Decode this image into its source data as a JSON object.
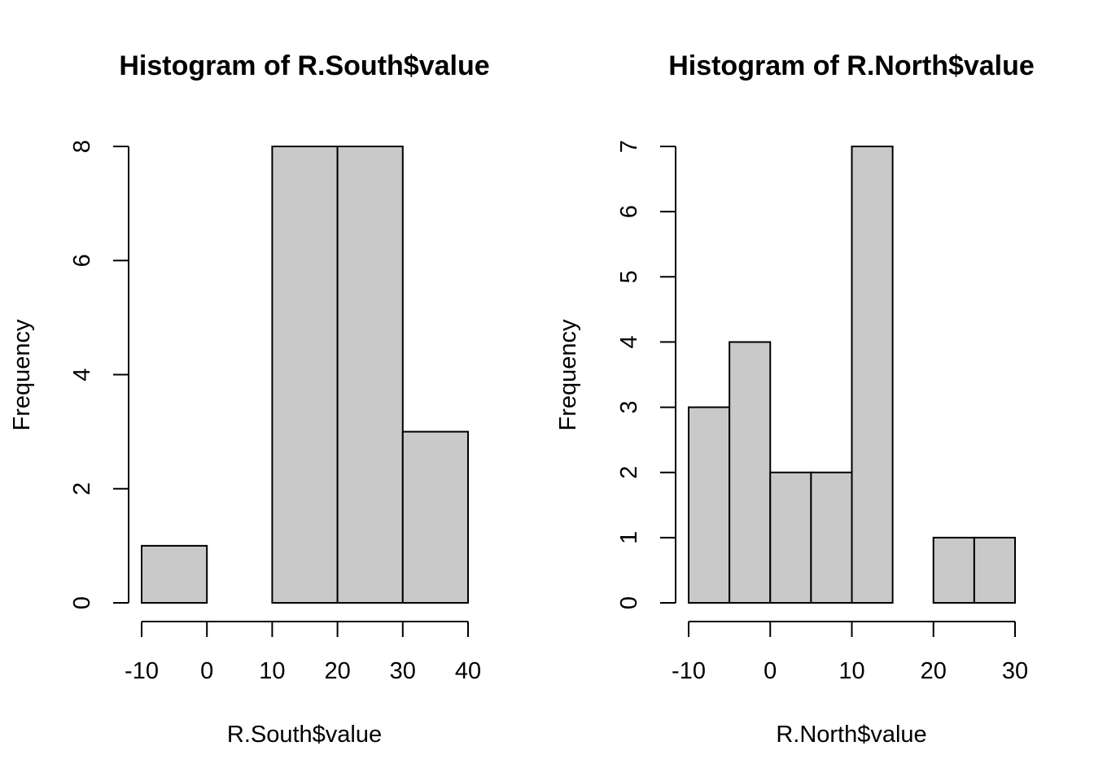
{
  "chart_data": [
    {
      "type": "bar",
      "title": "Histogram of R.South$value",
      "xlabel": "R.South$value",
      "ylabel": "Frequency",
      "bins": [
        {
          "start": -10,
          "end": 0,
          "count": 1
        },
        {
          "start": 0,
          "end": 10,
          "count": 0
        },
        {
          "start": 10,
          "end": 20,
          "count": 8
        },
        {
          "start": 20,
          "end": 30,
          "count": 8
        },
        {
          "start": 30,
          "end": 40,
          "count": 3
        }
      ],
      "x_ticks": [
        -10,
        0,
        10,
        20,
        30,
        40
      ],
      "y_ticks": [
        0,
        2,
        4,
        6,
        8
      ],
      "xlim": [
        -10,
        40
      ],
      "ylim": [
        0,
        8
      ],
      "grid": false,
      "bar_color": "#c9c9c9"
    },
    {
      "type": "bar",
      "title": "Histogram of R.North$value",
      "xlabel": "R.North$value",
      "ylabel": "Frequency",
      "bins": [
        {
          "start": -10,
          "end": -5,
          "count": 3
        },
        {
          "start": -5,
          "end": 0,
          "count": 4
        },
        {
          "start": 0,
          "end": 5,
          "count": 2
        },
        {
          "start": 5,
          "end": 10,
          "count": 2
        },
        {
          "start": 10,
          "end": 15,
          "count": 7
        },
        {
          "start": 15,
          "end": 20,
          "count": 0
        },
        {
          "start": 20,
          "end": 25,
          "count": 1
        },
        {
          "start": 25,
          "end": 30,
          "count": 1
        }
      ],
      "x_ticks": [
        -10,
        0,
        10,
        20,
        30
      ],
      "y_ticks": [
        0,
        1,
        2,
        3,
        4,
        5,
        6,
        7
      ],
      "xlim": [
        -10,
        30
      ],
      "ylim": [
        0,
        7
      ],
      "grid": false,
      "bar_color": "#c9c9c9"
    }
  ]
}
